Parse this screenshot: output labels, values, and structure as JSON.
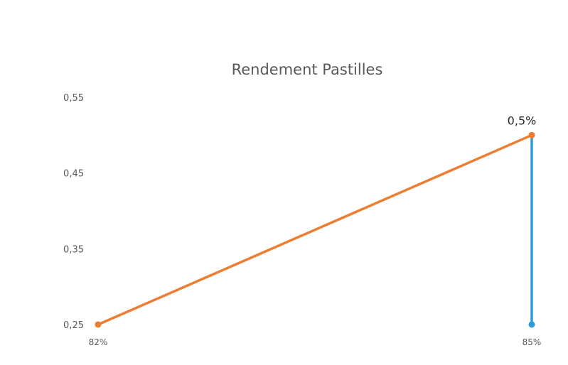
{
  "chart_data": {
    "type": "line",
    "title": "Rendement Pastilles",
    "xlabel": "",
    "ylabel": "",
    "x_tick_labels": [
      "82%",
      "85%"
    ],
    "y_tick_labels": [
      "0,25",
      "0,35",
      "0,45",
      "0,55"
    ],
    "ylim": [
      0.25,
      0.55
    ],
    "grid": false,
    "legend": "none",
    "series": [
      {
        "color": "#ED7D31",
        "points": [
          {
            "x": "82%",
            "y": 0.25
          },
          {
            "x": "85%",
            "y": 0.5
          }
        ]
      },
      {
        "color": "#2E9BD9",
        "points": [
          {
            "x": "85%",
            "y": 0.25
          },
          {
            "x": "85%",
            "y": 0.5
          }
        ]
      }
    ],
    "annotations": [
      {
        "text": "0,5%",
        "x": "85%",
        "y": 0.5
      }
    ]
  }
}
